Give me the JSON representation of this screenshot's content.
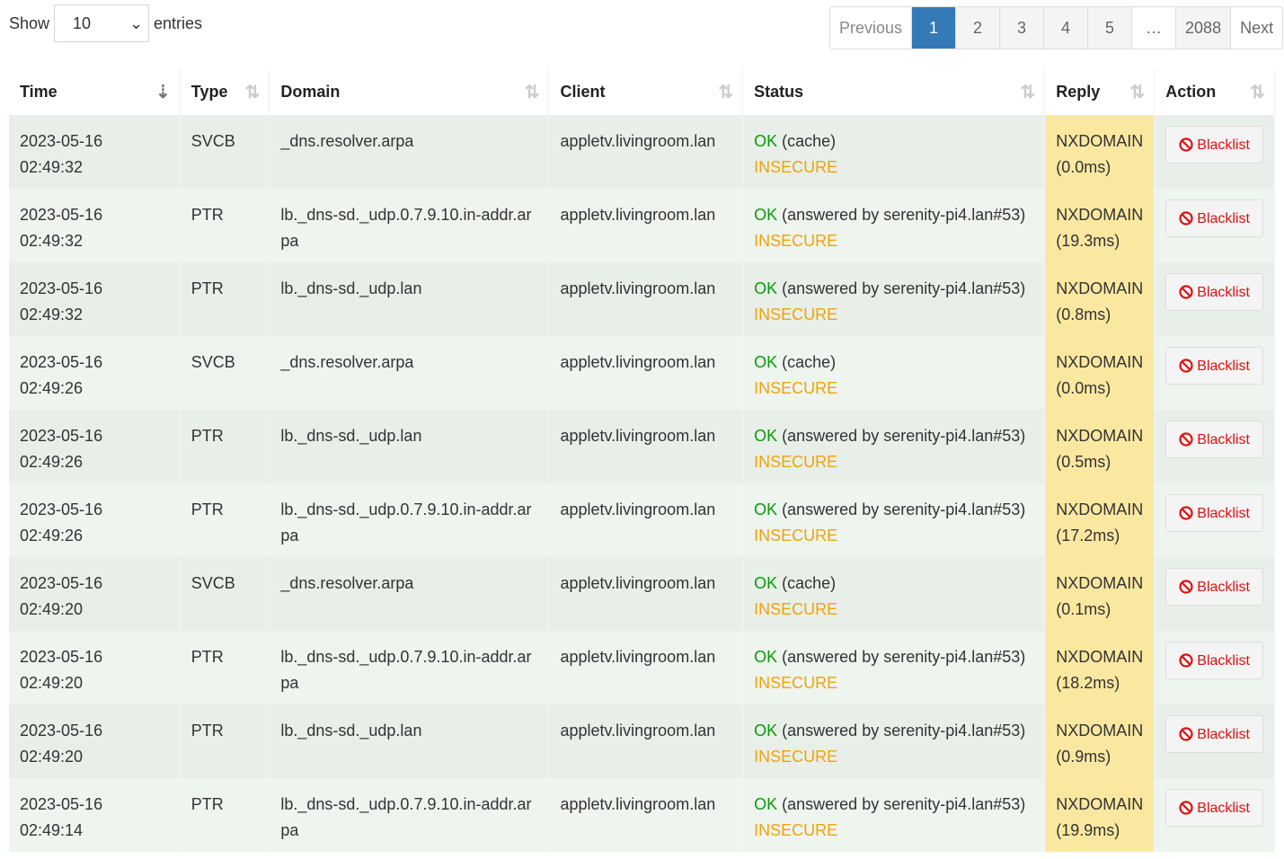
{
  "length": {
    "show": "Show",
    "value": "10",
    "entries": "entries"
  },
  "pagination": {
    "previous": "Previous",
    "pages": [
      "1",
      "2",
      "3",
      "4",
      "5"
    ],
    "ellipsis": "…",
    "last": "2088",
    "next": "Next",
    "active": "1"
  },
  "columns": [
    "Time",
    "Type",
    "Domain",
    "Client",
    "Status",
    "Reply",
    "Action"
  ],
  "action_label": "Blacklist",
  "rows": [
    {
      "time": "2023-05-16 02:49:32",
      "type": "SVCB",
      "domain": "_dns.resolver.arpa",
      "client": "appletv.livingroom.lan",
      "ok": "OK",
      "status": "(cache)",
      "dnssec": "INSECURE",
      "reply": "NXDOMAIN",
      "ms": "(0.0ms)"
    },
    {
      "time": "2023-05-16 02:49:32",
      "type": "PTR",
      "domain": "lb._dns-sd._udp.0.7.9.10.in-addr.arpa",
      "client": "appletv.livingroom.lan",
      "ok": "OK",
      "status": "(answered by serenity-pi4.lan#53)",
      "dnssec": "INSECURE",
      "reply": "NXDOMAIN",
      "ms": "(19.3ms)"
    },
    {
      "time": "2023-05-16 02:49:32",
      "type": "PTR",
      "domain": "lb._dns-sd._udp.lan",
      "client": "appletv.livingroom.lan",
      "ok": "OK",
      "status": "(answered by serenity-pi4.lan#53)",
      "dnssec": "INSECURE",
      "reply": "NXDOMAIN",
      "ms": "(0.8ms)"
    },
    {
      "time": "2023-05-16 02:49:26",
      "type": "SVCB",
      "domain": "_dns.resolver.arpa",
      "client": "appletv.livingroom.lan",
      "ok": "OK",
      "status": "(cache)",
      "dnssec": "INSECURE",
      "reply": "NXDOMAIN",
      "ms": "(0.0ms)"
    },
    {
      "time": "2023-05-16 02:49:26",
      "type": "PTR",
      "domain": "lb._dns-sd._udp.lan",
      "client": "appletv.livingroom.lan",
      "ok": "OK",
      "status": "(answered by serenity-pi4.lan#53)",
      "dnssec": "INSECURE",
      "reply": "NXDOMAIN",
      "ms": "(0.5ms)"
    },
    {
      "time": "2023-05-16 02:49:26",
      "type": "PTR",
      "domain": "lb._dns-sd._udp.0.7.9.10.in-addr.arpa",
      "client": "appletv.livingroom.lan",
      "ok": "OK",
      "status": "(answered by serenity-pi4.lan#53)",
      "dnssec": "INSECURE",
      "reply": "NXDOMAIN",
      "ms": "(17.2ms)"
    },
    {
      "time": "2023-05-16 02:49:20",
      "type": "SVCB",
      "domain": "_dns.resolver.arpa",
      "client": "appletv.livingroom.lan",
      "ok": "OK",
      "status": "(cache)",
      "dnssec": "INSECURE",
      "reply": "NXDOMAIN",
      "ms": "(0.1ms)"
    },
    {
      "time": "2023-05-16 02:49:20",
      "type": "PTR",
      "domain": "lb._dns-sd._udp.0.7.9.10.in-addr.arpa",
      "client": "appletv.livingroom.lan",
      "ok": "OK",
      "status": "(answered by serenity-pi4.lan#53)",
      "dnssec": "INSECURE",
      "reply": "NXDOMAIN",
      "ms": "(18.2ms)"
    },
    {
      "time": "2023-05-16 02:49:20",
      "type": "PTR",
      "domain": "lb._dns-sd._udp.lan",
      "client": "appletv.livingroom.lan",
      "ok": "OK",
      "status": "(answered by serenity-pi4.lan#53)",
      "dnssec": "INSECURE",
      "reply": "NXDOMAIN",
      "ms": "(0.9ms)"
    },
    {
      "time": "2023-05-16 02:49:14",
      "type": "PTR",
      "domain": "lb._dns-sd._udp.0.7.9.10.in-addr.arpa",
      "client": "appletv.livingroom.lan",
      "ok": "OK",
      "status": "(answered by serenity-pi4.lan#53)",
      "dnssec": "INSECURE",
      "reply": "NXDOMAIN",
      "ms": "(19.9ms)"
    }
  ],
  "colors": {
    "accent": "#337ab7",
    "ok": "#0a9a0a",
    "insecure": "#f0a30a",
    "reply_bg": "#fbe8a0",
    "blacklist": "#dd1111"
  }
}
